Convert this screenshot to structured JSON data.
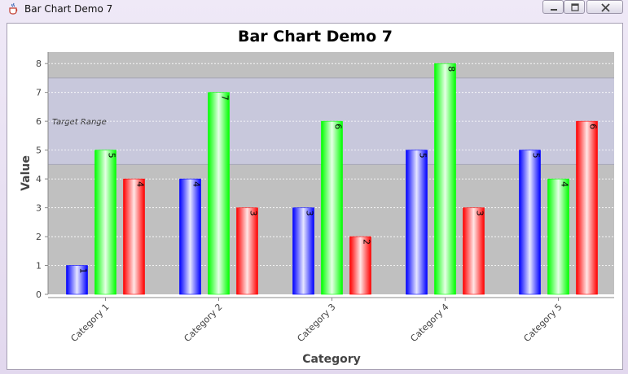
{
  "window": {
    "title": "Bar Chart Demo 7",
    "icon": "java-cup-icon",
    "controls": [
      "minimize-icon",
      "restore-icon",
      "close-icon"
    ]
  },
  "chart_data": {
    "type": "bar",
    "title": "Bar Chart Demo 7",
    "xlabel": "Category",
    "ylabel": "Value",
    "categories": [
      "Category 1",
      "Category 2",
      "Category 3",
      "Category 4",
      "Category 5"
    ],
    "yticks": [
      "0",
      "1",
      "2",
      "3",
      "4",
      "5",
      "6",
      "7",
      "8"
    ],
    "ylim": [
      0,
      8.4
    ],
    "grid": true,
    "series": [
      {
        "values": [
          1,
          4,
          3,
          5,
          5
        ],
        "color": "#0000ff"
      },
      {
        "values": [
          5,
          7,
          6,
          8,
          4
        ],
        "color": "#00ff00"
      },
      {
        "values": [
          4,
          3,
          2,
          3,
          6
        ],
        "color": "#ff0000"
      }
    ],
    "markers": [
      {
        "type": "band",
        "label": "Target Range",
        "from": 4.5,
        "to": 7.5,
        "color": "#c8c8dc"
      }
    ],
    "plot_background": "#c0c0c0"
  }
}
